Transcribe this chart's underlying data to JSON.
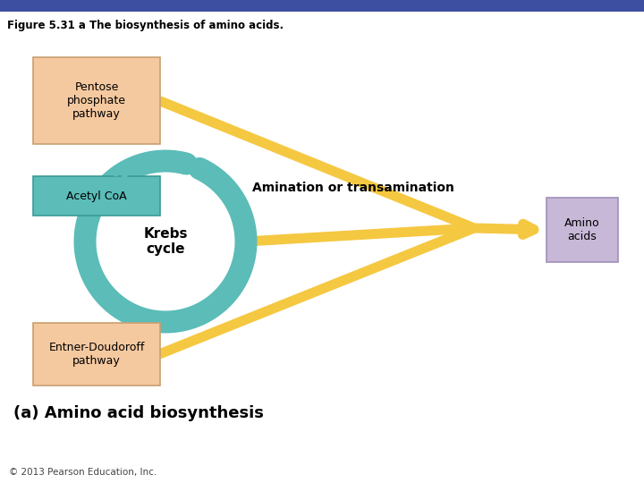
{
  "title": "Figure 5.31 a The biosynthesis of amino acids.",
  "title_bar_color": "#3d4fa0",
  "title_text_color": "#ffffff",
  "bg_color": "#ffffff",
  "box_pentose_label": "Pentose\nphosphate\npathway",
  "box_acetyl_label": "Acetyl CoA",
  "box_entner_label": "Entner-Doudoroff\npathway",
  "box_amino_label": "Amino\nacids",
  "krebs_label": "Krebs\ncycle",
  "amination_label": "Amination or transamination",
  "caption": "(a) Amino acid biosynthesis",
  "copyright": "© 2013 Pearson Education, Inc.",
  "box_orange_color": "#f5c9a0",
  "box_orange_edge": "#c8a070",
  "box_teal_color": "#5bbcb8",
  "box_teal_edge": "#3a9a96",
  "box_purple_color": "#c8b8d8",
  "box_purple_edge": "#a090b8",
  "arrow_color": "#f5c842",
  "arrow_edge": "#e0a830",
  "krebs_circle_color": "#5bbcb8",
  "line_lw": 8
}
